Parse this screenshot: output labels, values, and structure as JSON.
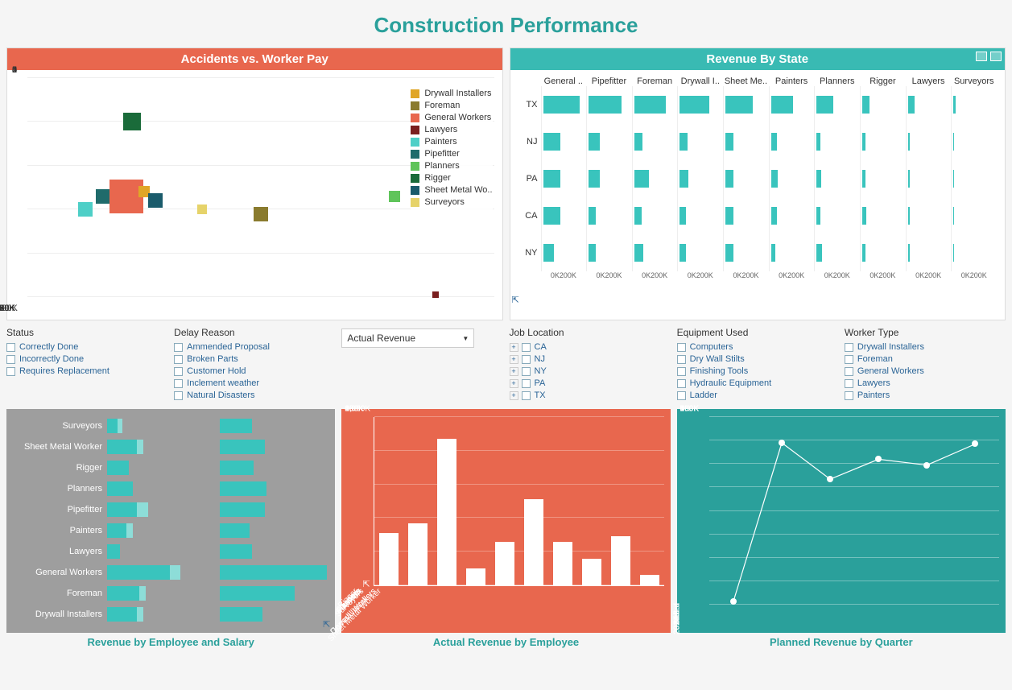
{
  "title": "Construction Performance",
  "colors": {
    "teal": "#39bab3",
    "teal_light": "#8dddd8",
    "teal_bar": "#39c4bd",
    "orange": "#e8674e",
    "gray_bg": "#9e9e9e",
    "link": "#2a6496",
    "title_color": "#2aa09b"
  },
  "scatter": {
    "title": "Accidents vs. Worker Pay",
    "type": "scatter",
    "xlim": [
      20000,
      100000
    ],
    "ylim": [
      0,
      5
    ],
    "xticks": [
      "20K",
      "30K",
      "40K",
      "50K",
      "60K",
      "70K",
      "80K",
      "90K",
      "100K"
    ],
    "yticks": [
      "0",
      "1",
      "2",
      "3",
      "4",
      "5"
    ],
    "legend": [
      {
        "label": "Drywall Installers",
        "color": "#e0a627"
      },
      {
        "label": "Foreman",
        "color": "#8a7b2e"
      },
      {
        "label": "General Workers",
        "color": "#e8674e"
      },
      {
        "label": "Lawyers",
        "color": "#7a1f1f"
      },
      {
        "label": "Painters",
        "color": "#4ecfc7"
      },
      {
        "label": "Pipefitter",
        "color": "#1f6b6b"
      },
      {
        "label": "Planners",
        "color": "#5fc45a"
      },
      {
        "label": "Rigger",
        "color": "#1a6b3a"
      },
      {
        "label": "Sheet Metal Wo..",
        "color": "#1a5b6b"
      },
      {
        "label": "Surveyors",
        "color": "#e6d36a"
      }
    ],
    "points": [
      {
        "x": 30000,
        "y": 2.0,
        "size": 18,
        "color": "#4ecfc7"
      },
      {
        "x": 33000,
        "y": 2.3,
        "size": 18,
        "color": "#1f6b6b"
      },
      {
        "x": 37000,
        "y": 2.3,
        "size": 42,
        "color": "#e8674e"
      },
      {
        "x": 40000,
        "y": 2.4,
        "size": 14,
        "color": "#e0a627"
      },
      {
        "x": 42000,
        "y": 2.2,
        "size": 18,
        "color": "#1a5b6b"
      },
      {
        "x": 38000,
        "y": 4.0,
        "size": 22,
        "color": "#1a6b3a"
      },
      {
        "x": 50000,
        "y": 2.0,
        "size": 12,
        "color": "#e6d36a"
      },
      {
        "x": 60000,
        "y": 1.9,
        "size": 18,
        "color": "#8a7b2e"
      },
      {
        "x": 83000,
        "y": 2.3,
        "size": 14,
        "color": "#5fc45a"
      },
      {
        "x": 90000,
        "y": 0.05,
        "size": 8,
        "color": "#7a1f1f"
      }
    ]
  },
  "revenue_state": {
    "title": "Revenue By State",
    "type": "small-multiples-bar",
    "columns": [
      "General ..",
      "Pipefitter",
      "Foreman",
      "Drywall I..",
      "Sheet Me..",
      "Painters",
      "Planners",
      "Rigger",
      "Lawyers",
      "Surveyors"
    ],
    "x_axis_label": "0K200K",
    "cell_max": 200,
    "rows": [
      {
        "label": "TX",
        "values": [
          200,
          180,
          170,
          160,
          150,
          120,
          90,
          40,
          35,
          10
        ]
      },
      {
        "label": "NJ",
        "values": [
          95,
          60,
          45,
          40,
          45,
          30,
          20,
          15,
          10,
          4
        ]
      },
      {
        "label": "PA",
        "values": [
          95,
          60,
          80,
          45,
          45,
          35,
          25,
          15,
          10,
          4
        ]
      },
      {
        "label": "CA",
        "values": [
          95,
          40,
          40,
          35,
          45,
          30,
          20,
          20,
          10,
          4
        ]
      },
      {
        "label": "NY",
        "values": [
          60,
          40,
          50,
          35,
          45,
          25,
          30,
          15,
          10,
          4
        ]
      }
    ]
  },
  "filters_left": {
    "status": {
      "title": "Status",
      "items": [
        "Correctly Done",
        "Incorrectly Done",
        "Requires Replacement"
      ]
    },
    "delay": {
      "title": "Delay Reason",
      "items": [
        "Ammended Proposal",
        "Broken Parts",
        "Customer Hold",
        "Inclement weather",
        "Natural Disasters"
      ]
    },
    "dropdown": {
      "label": "Actual Revenue"
    }
  },
  "filters_right": {
    "job_location": {
      "title": "Job Location",
      "items": [
        "CA",
        "NJ",
        "NY",
        "PA",
        "TX"
      ],
      "expandable": true
    },
    "equipment": {
      "title": "Equipment Used",
      "items": [
        "Computers",
        "Dry Wall Stilts",
        "Finishing Tools",
        "Hydraulic Equipment",
        "Ladder"
      ]
    },
    "worker_type": {
      "title": "Worker Type",
      "items": [
        "Drywall Installers",
        "Foreman",
        "General Workers",
        "Lawyers",
        "Painters"
      ]
    }
  },
  "rev_emp_sal": {
    "title": "Revenue by Employee and Salary",
    "type": "grouped-horizontal-bar",
    "max": 100,
    "categories": [
      "Surveyors",
      "Sheet Metal Worker",
      "Rigger",
      "Planners",
      "Pipefitter",
      "Painters",
      "Lawyers",
      "General Workers",
      "Foreman",
      "Drywall Installers"
    ],
    "bars": [
      {
        "a": 10,
        "a2": 4,
        "b": 30
      },
      {
        "a": 28,
        "a2": 6,
        "b": 42
      },
      {
        "a": 20,
        "a2": 0,
        "b": 32
      },
      {
        "a": 24,
        "a2": 0,
        "b": 44
      },
      {
        "a": 28,
        "a2": 10,
        "b": 42
      },
      {
        "a": 18,
        "a2": 6,
        "b": 28
      },
      {
        "a": 12,
        "a2": 0,
        "b": 30
      },
      {
        "a": 58,
        "a2": 10,
        "b": 100
      },
      {
        "a": 30,
        "a2": 6,
        "b": 70
      },
      {
        "a": 28,
        "a2": 6,
        "b": 40
      }
    ]
  },
  "actual_rev": {
    "title": "Actual Revenue by Employee",
    "type": "vertical-bar",
    "ylim": [
      0,
      1000
    ],
    "yticks": [
      "0K",
      "200K",
      "400K",
      "600K",
      "800K",
      "1,000K"
    ],
    "categories": [
      "Drywall Installers",
      "Foreman",
      "General Workers",
      "Lawyers",
      "Painters",
      "Pipefitter",
      "Planners",
      "Rigger",
      "Sheet Metal Worker",
      "Surveyors"
    ],
    "values": [
      310,
      370,
      870,
      100,
      260,
      510,
      260,
      160,
      290,
      60
    ]
  },
  "planned_rev": {
    "title": "Planned Revenue by Quarter",
    "type": "line",
    "ylim": [
      0,
      800
    ],
    "yticks": [
      "0K",
      "100K",
      "200K",
      "300K",
      "400K",
      "500K",
      "600K",
      "700K",
      "800K"
    ],
    "categories": [
      "2013 3rd",
      "4th",
      "2014 1st",
      "2nd",
      "3rd",
      "4th"
    ],
    "values": [
      15,
      690,
      535,
      620,
      595,
      685
    ]
  }
}
